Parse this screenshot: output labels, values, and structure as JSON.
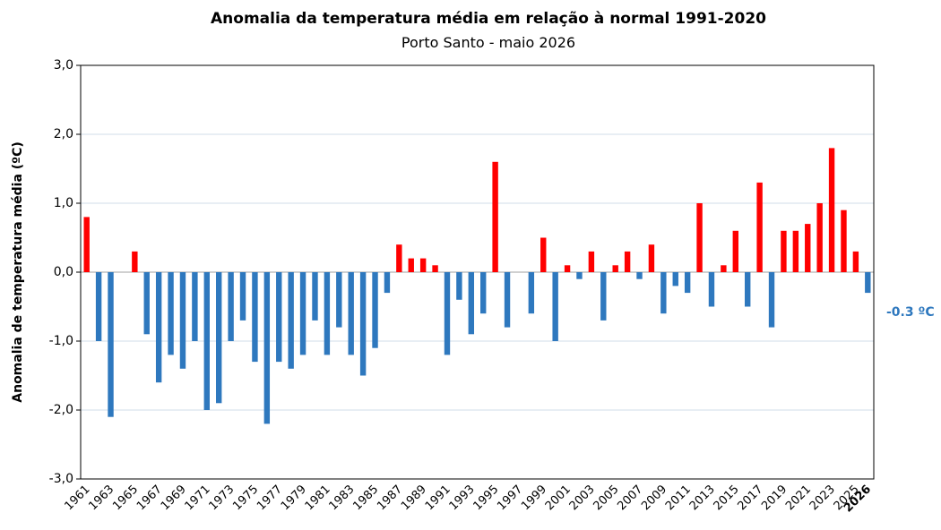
{
  "chart_data": {
    "type": "bar",
    "title": "Anomalia da temperatura média em relação à normal 1991-2020",
    "subtitle": "Porto Santo - maio 2026",
    "y_label": "Anomalia de temperatura média (ºC)",
    "categories": [
      "1961",
      null,
      "1963",
      null,
      "1965",
      null,
      "1967",
      null,
      "1969",
      null,
      "1971",
      null,
      "1973",
      null,
      "1975",
      null,
      "1977",
      null,
      "1979",
      null,
      "1981",
      null,
      "1983",
      null,
      "1985",
      null,
      "1987",
      null,
      "1989",
      null,
      "1991",
      null,
      "1993",
      null,
      "1995",
      null,
      "1997",
      null,
      "1999",
      null,
      "2001",
      null,
      "2003",
      null,
      "2005",
      null,
      "2007",
      null,
      "2009",
      null,
      "2011",
      null,
      "2013",
      null,
      "2015",
      null,
      "2017",
      null,
      "2019",
      null,
      "2021",
      null,
      "2023",
      null,
      "2025",
      "2026"
    ],
    "values": [
      0.8,
      -1.0,
      -2.1,
      0,
      0.3,
      -0.9,
      -1.6,
      -1.2,
      -1.4,
      -1.0,
      -2.0,
      -1.9,
      -1.0,
      -0.7,
      -1.3,
      -2.2,
      -1.3,
      -1.4,
      -1.2,
      -0.7,
      -1.2,
      -0.8,
      -1.2,
      -1.5,
      -1.1,
      -0.3,
      0.4,
      0.2,
      0.2,
      0.1,
      -1.2,
      -0.4,
      -0.9,
      -0.6,
      1.6,
      -0.8,
      0,
      -0.6,
      0.5,
      -1.0,
      0.1,
      -0.1,
      0.3,
      -0.7,
      0.1,
      0.3,
      -0.1,
      0.4,
      -0.6,
      -0.2,
      -0.3,
      1.0,
      -0.5,
      0.1,
      0.6,
      -0.5,
      1.3,
      -0.8,
      0.6,
      0.6,
      0.7,
      1.0,
      1.8,
      0.9,
      0.3,
      -0.3
    ],
    "positive_color": "#ff0000",
    "negative_color": "#2e78be",
    "ylim": [
      -3,
      3
    ],
    "yticks": [
      {
        "value": -3,
        "label": "-3,0"
      },
      {
        "value": -2,
        "label": "-2,0"
      },
      {
        "value": -1,
        "label": "-1,0"
      },
      {
        "value": 0,
        "label": "0,0"
      },
      {
        "value": 1,
        "label": "1,0"
      },
      {
        "value": 2,
        "label": "2,0"
      },
      {
        "value": 3,
        "label": "3,0"
      }
    ],
    "grid": true,
    "annotation": "-0.3 ºC"
  }
}
